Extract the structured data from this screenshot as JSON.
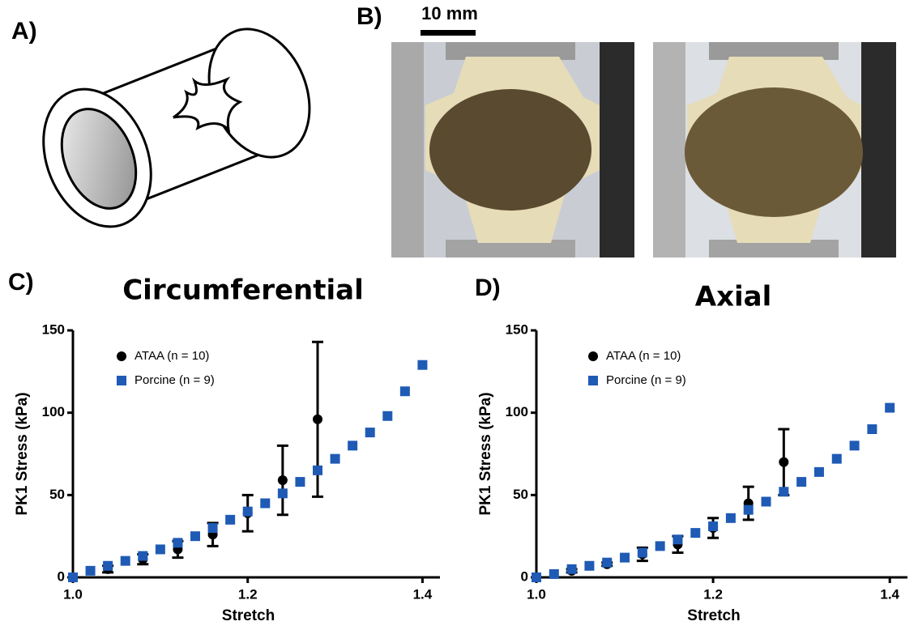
{
  "figure_labels": {
    "a": "A)",
    "b": "B)",
    "scale_bar": "10 mm"
  },
  "chart_data": [
    {
      "type": "scatter",
      "panel_label": "C)",
      "title": "Circumferential",
      "x_label": "Stretch",
      "y_label": "PK1 Stress (kPa)",
      "xlim": [
        1.0,
        1.42
      ],
      "ylim": [
        0,
        150
      ],
      "xticks": [
        {
          "value": 1.0,
          "label": "1.0"
        },
        1.2,
        1.4
      ],
      "yticks": [
        0,
        50,
        100,
        150
      ],
      "series": [
        {
          "name": "ATAA (n = 10)",
          "color": "#000000",
          "marker": "circle",
          "x": [
            1.04,
            1.08,
            1.12,
            1.16,
            1.2,
            1.24,
            1.28
          ],
          "values": [
            5,
            11,
            17,
            26,
            39,
            59,
            96
          ],
          "errors": [
            2,
            3,
            5,
            7,
            11,
            21,
            47
          ]
        },
        {
          "name": "Porcine (n = 9)",
          "color": "#1f5bb5",
          "marker": "square",
          "x": [
            1.0,
            1.02,
            1.04,
            1.06,
            1.08,
            1.1,
            1.12,
            1.14,
            1.16,
            1.18,
            1.2,
            1.22,
            1.24,
            1.26,
            1.28,
            1.3,
            1.32,
            1.34,
            1.36,
            1.38,
            1.4
          ],
          "values": [
            0,
            4,
            7,
            10,
            13,
            17,
            21,
            25,
            30,
            35,
            40,
            45,
            51,
            58,
            65,
            72,
            80,
            88,
            98,
            113,
            129
          ]
        }
      ]
    },
    {
      "type": "scatter",
      "panel_label": "D)",
      "title": "Axial",
      "x_label": "Stretch",
      "y_label": "PK1 Stress (kPa)",
      "xlim": [
        1.0,
        1.42
      ],
      "ylim": [
        0,
        150
      ],
      "xticks": [
        {
          "value": 1.0,
          "label": "1.0"
        },
        1.2,
        1.4
      ],
      "yticks": [
        0,
        50,
        100,
        150
      ],
      "series": [
        {
          "name": "ATAA (n = 10)",
          "color": "#000000",
          "marker": "circle",
          "x": [
            1.04,
            1.08,
            1.12,
            1.16,
            1.2,
            1.24,
            1.28
          ],
          "values": [
            4,
            8,
            14,
            20,
            30,
            45,
            70
          ],
          "errors": [
            1,
            1,
            4,
            5,
            6,
            10,
            20
          ]
        },
        {
          "name": "Porcine (n = 9)",
          "color": "#1f5bb5",
          "marker": "square",
          "x": [
            1.0,
            1.02,
            1.04,
            1.06,
            1.08,
            1.1,
            1.12,
            1.14,
            1.16,
            1.18,
            1.2,
            1.22,
            1.24,
            1.26,
            1.28,
            1.3,
            1.32,
            1.34,
            1.36,
            1.38,
            1.4
          ],
          "values": [
            0,
            2,
            5,
            7,
            9,
            12,
            15,
            19,
            23,
            27,
            31,
            36,
            41,
            46,
            52,
            58,
            64,
            72,
            80,
            90,
            103
          ]
        }
      ]
    }
  ]
}
